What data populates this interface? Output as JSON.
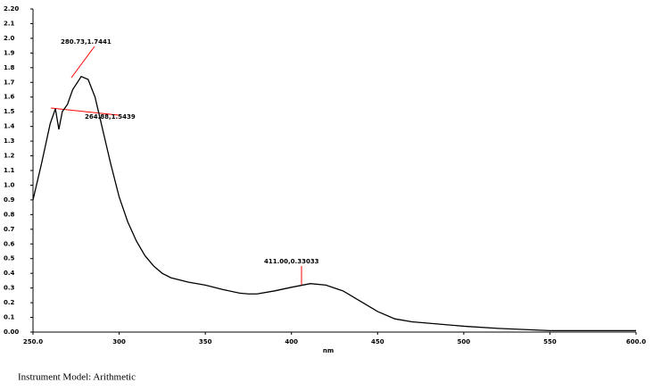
{
  "chart_data": {
    "type": "line",
    "x": [
      250,
      255,
      260,
      263,
      265,
      267,
      270,
      273,
      278,
      282,
      286,
      290,
      295,
      300,
      305,
      310,
      315,
      320,
      325,
      330,
      340,
      350,
      360,
      370,
      375,
      380,
      390,
      400,
      411,
      420,
      430,
      440,
      450,
      460,
      470,
      480,
      500,
      520,
      550,
      600
    ],
    "values": [
      0.9,
      1.15,
      1.42,
      1.52,
      1.38,
      1.5,
      1.55,
      1.65,
      1.74,
      1.72,
      1.6,
      1.4,
      1.15,
      0.92,
      0.75,
      0.62,
      0.52,
      0.45,
      0.4,
      0.37,
      0.34,
      0.32,
      0.29,
      0.265,
      0.26,
      0.26,
      0.28,
      0.305,
      0.33,
      0.32,
      0.28,
      0.21,
      0.14,
      0.09,
      0.07,
      0.06,
      0.04,
      0.025,
      0.01,
      0.01
    ],
    "color": "#000000",
    "x_label": "nm",
    "xlim": [
      250,
      600
    ],
    "xticks": [
      {
        "value": 250,
        "label": "250.0"
      },
      300,
      350,
      400,
      450,
      500,
      550,
      {
        "value": 600,
        "label": "600.0"
      }
    ],
    "ylim": [
      0,
      2.2
    ],
    "yticks": [
      {
        "value": 0,
        "label": "0.00"
      },
      0.1,
      0.2,
      0.3,
      0.4,
      0.5,
      0.6,
      0.7,
      0.8,
      0.9,
      {
        "value": 1,
        "label": "1.0"
      },
      1.1,
      1.2,
      1.3,
      1.4,
      1.5,
      1.6,
      1.7,
      1.8,
      1.9,
      {
        "value": 2,
        "label": "2.0"
      },
      2.1,
      {
        "value": 2.2,
        "label": "2.20"
      }
    ],
    "annotations": [
      "280.73,1.7441",
      "264.88,1.5439",
      "411.00,0.33033"
    ],
    "annotation_color": "#ff0000",
    "grid": false
  },
  "footer": "Instrument Model: Arithmetic"
}
